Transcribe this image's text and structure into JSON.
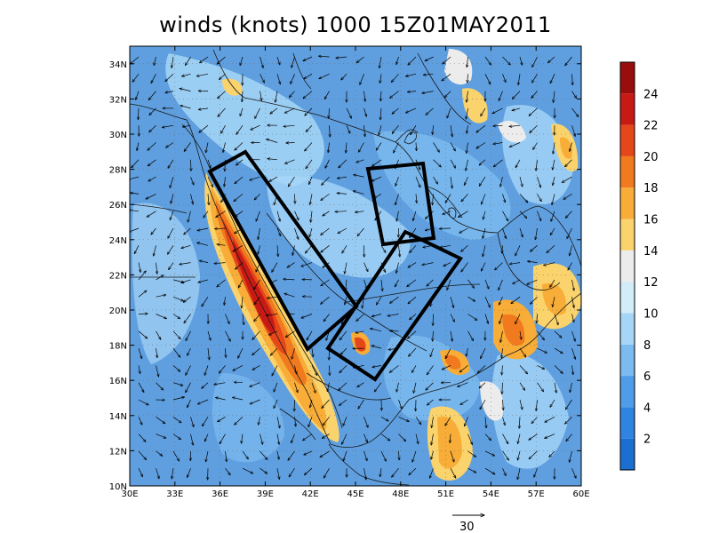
{
  "title": "winds (knots) 1000 15Z01MAY2011",
  "map": {
    "lon_range": [
      30,
      60
    ],
    "lat_range": [
      10,
      35
    ],
    "lon_ticks": [
      "30E",
      "33E",
      "36E",
      "39E",
      "42E",
      "45E",
      "48E",
      "51E",
      "54E",
      "57E",
      "60E"
    ],
    "lat_ticks": [
      "10N",
      "12N",
      "14N",
      "16N",
      "18N",
      "20N",
      "22N",
      "24N",
      "26N",
      "28N",
      "30N",
      "32N",
      "34N"
    ],
    "colors": {
      "background": "#5f9fdf",
      "coast": "#1a1a1a",
      "box": "#000000"
    }
  },
  "colorbar": {
    "labels": [
      "2",
      "4",
      "6",
      "8",
      "10",
      "12",
      "14",
      "16",
      "18",
      "20",
      "22",
      "24"
    ],
    "colors": [
      "#1b6fd1",
      "#2f84e2",
      "#4f9de9",
      "#7cbbf0",
      "#a6d6f7",
      "#d2ecf9",
      "#ececec",
      "#fad36d",
      "#f7ad37",
      "#f17a1f",
      "#e5471a",
      "#c81a15",
      "#9a0d0d"
    ]
  },
  "reference_vector": {
    "label": "30"
  }
}
